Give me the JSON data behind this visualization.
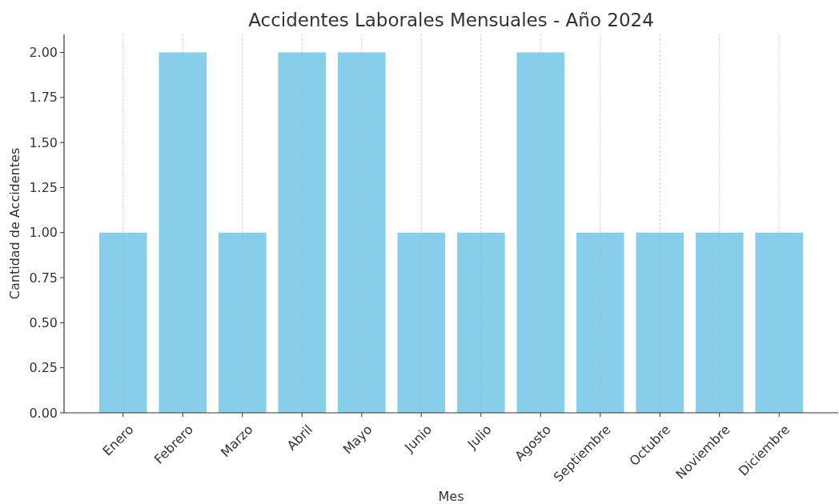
{
  "chart_data": {
    "type": "bar",
    "title": "Accidentes Laborales Mensuales - Año 2024",
    "xlabel": "Mes",
    "ylabel": "Cantidad de Accidentes",
    "categories": [
      "Enero",
      "Febrero",
      "Marzo",
      "Abril",
      "Mayo",
      "Junio",
      "Julio",
      "Agosto",
      "Septiembre",
      "Octubre",
      "Noviembre",
      "Diciembre"
    ],
    "values": [
      1,
      2,
      1,
      2,
      2,
      1,
      1,
      2,
      1,
      1,
      1,
      1
    ],
    "color": "#87ceeb",
    "ylim": [
      0,
      2.1
    ],
    "yticks": [
      {
        "value": 0,
        "label": "0.00"
      },
      {
        "value": 0.25,
        "label": "0.25"
      },
      {
        "value": 0.5,
        "label": "0.50"
      },
      {
        "value": 0.75,
        "label": "0.75"
      },
      {
        "value": 1,
        "label": "1.00"
      },
      {
        "value": 1.25,
        "label": "1.25"
      },
      {
        "value": 1.5,
        "label": "1.50"
      },
      {
        "value": 1.75,
        "label": "1.75"
      },
      {
        "value": 2,
        "label": "2.00"
      }
    ],
    "grid": "x"
  }
}
